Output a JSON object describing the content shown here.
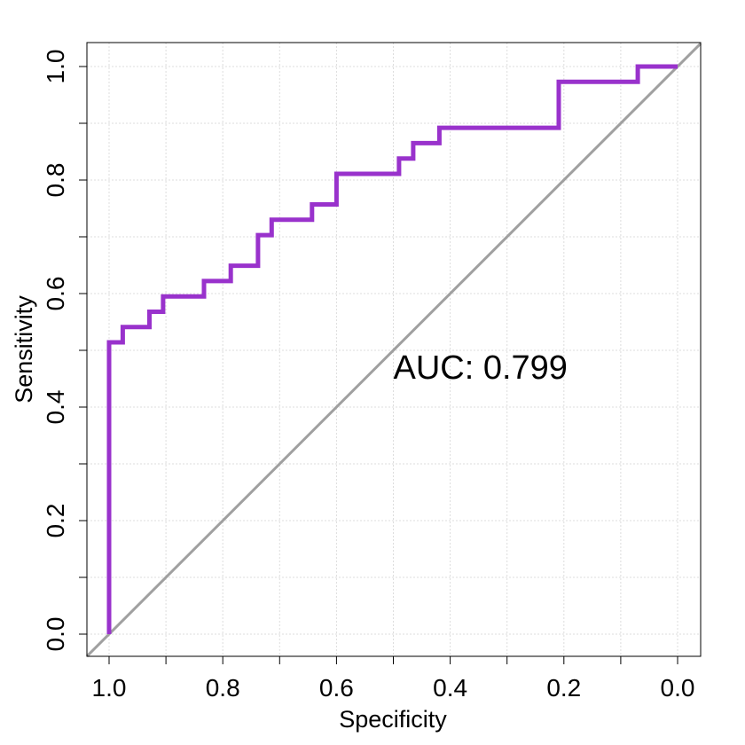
{
  "chart_data": {
    "type": "line",
    "title": "",
    "xlabel": "Specificity",
    "ylabel": "Sensitivity",
    "xlim": [
      1.0,
      0.0
    ],
    "ylim": [
      0.0,
      1.0
    ],
    "x_reversed": true,
    "grid": true,
    "x_ticks": [
      "1.0",
      "0.8",
      "0.6",
      "0.4",
      "0.2",
      "0.0"
    ],
    "x_tick_values": [
      1.0,
      0.8,
      0.6,
      0.4,
      0.2,
      0.0
    ],
    "y_ticks": [
      "0.0",
      "0.2",
      "0.4",
      "0.6",
      "0.8",
      "1.0"
    ],
    "y_tick_values": [
      0.0,
      0.2,
      0.4,
      0.6,
      0.8,
      1.0
    ],
    "annotation": "AUC: 0.799",
    "annotation_at": {
      "specificity": 0.5,
      "sensitivity": 0.45
    },
    "series": [
      {
        "color": "#9932CC",
        "x": [
          1.0,
          1.0,
          0.976,
          0.976,
          0.929,
          0.929,
          0.905,
          0.905,
          0.833,
          0.833,
          0.786,
          0.786,
          0.738,
          0.738,
          0.714,
          0.714,
          0.643,
          0.643,
          0.6,
          0.6,
          0.49,
          0.49,
          0.465,
          0.465,
          0.419,
          0.419,
          0.209,
          0.209,
          0.07,
          0.07,
          0.0
        ],
        "y": [
          0.0,
          0.514,
          0.514,
          0.541,
          0.541,
          0.568,
          0.568,
          0.595,
          0.595,
          0.622,
          0.622,
          0.649,
          0.649,
          0.703,
          0.703,
          0.73,
          0.73,
          0.757,
          0.757,
          0.811,
          0.811,
          0.838,
          0.838,
          0.865,
          0.865,
          0.892,
          0.892,
          0.973,
          0.973,
          1.0,
          1.0
        ]
      }
    ],
    "reference_line": {
      "color": "#A0A0A0",
      "from": [
        1.0,
        0.0
      ],
      "to": [
        0.0,
        1.0
      ]
    },
    "colors": {
      "curve": "#9932CC",
      "diagonal": "#A0A0A0",
      "grid": "#DDDDDD"
    }
  }
}
